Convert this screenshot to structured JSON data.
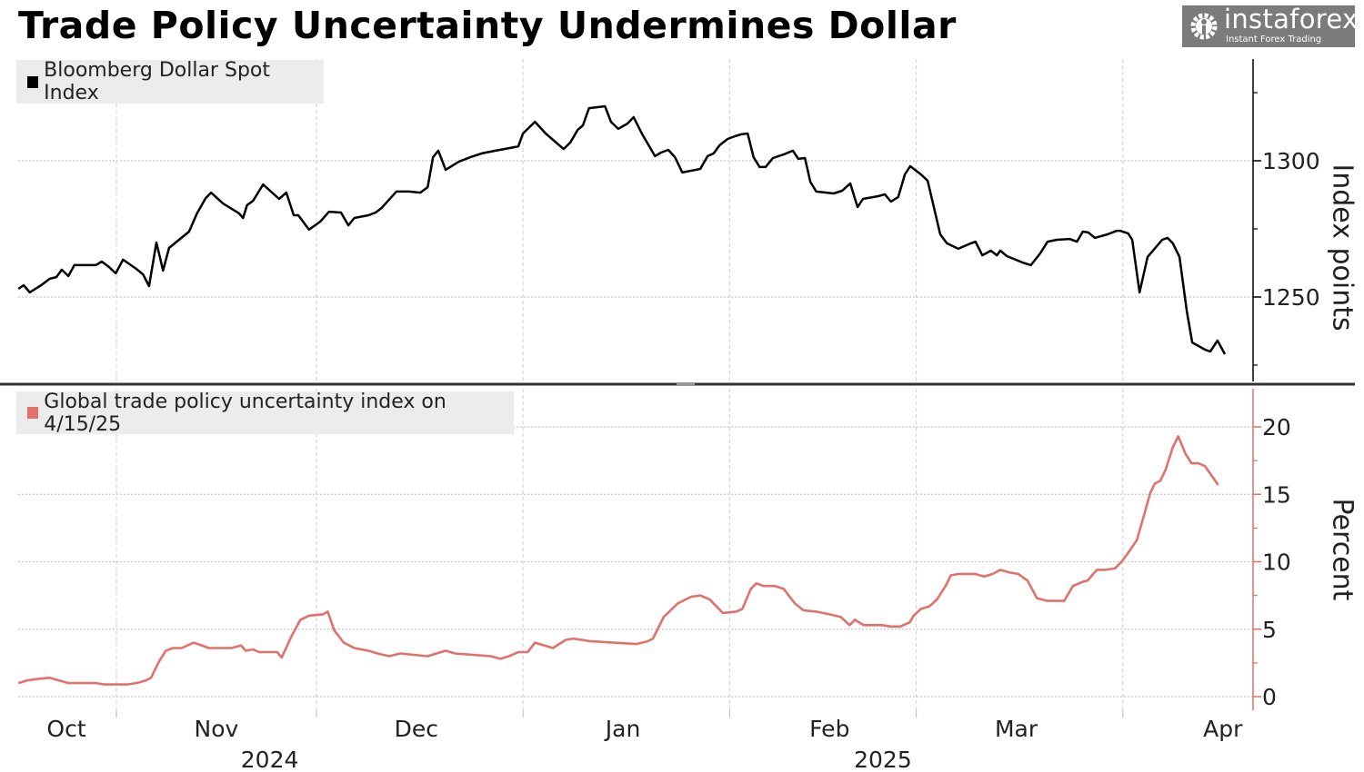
{
  "title": "Trade Policy Uncertainty Undermines Dollar",
  "watermark": {
    "brand": "instaforex",
    "tagline": "Instant Forex Trading"
  },
  "chart_data": [
    {
      "type": "line",
      "panel": "top",
      "legend": "Bloomberg Dollar Spot Index",
      "legend_placement": "top-left",
      "color": "#000000",
      "ylabel": "Index points",
      "yticks": [
        1250,
        1300
      ],
      "ylim": [
        1219,
        1337
      ],
      "grid": true,
      "x_unit": "days since 2024-11-01",
      "x": [
        -14.7,
        -13.9,
        -13.0,
        -11.3,
        -10.0,
        -9.0,
        -8.2,
        -7.2,
        -6.3,
        -3.1,
        -2.2,
        -1.1,
        -0.1,
        1.0,
        3.0,
        4.0,
        4.9,
        6.0,
        7.0,
        7.9,
        9.4,
        10.9,
        12.1,
        13.4,
        14.2,
        16.0,
        18.4,
        19.0,
        19.6,
        20.5,
        22.0,
        24.4,
        25.5,
        26.6,
        27.3,
        28.9,
        30.6,
        31.9,
        33.7,
        34.8,
        35.7,
        37.8,
        38.9,
        39.8,
        40.9,
        42.0,
        43.9,
        45.6,
        46.7,
        47.5,
        48.3,
        49.4,
        51.4,
        53.1,
        54.8,
        56.9,
        59.1,
        60.3,
        61.0,
        62.8,
        64.4,
        67.1,
        68.1,
        69.2,
        70.0,
        70.9,
        73.3,
        74.2,
        75.3,
        76.7,
        77.6,
        78.9,
        80.8,
        81.7,
        82.8,
        83.8,
        84.9,
        87.6,
        88.7,
        89.6,
        90.5,
        91.7,
        92.8,
        93.7,
        94.7,
        95.6,
        96.5,
        97.4,
        98.5,
        100.1,
        101.5,
        102.3,
        103.3,
        104.1,
        105.0,
        107.6,
        108.9,
        110.1,
        111.2,
        112.0,
        114.3,
        115.3,
        116.2,
        117.3,
        118.3,
        119.1,
        120.7,
        121.7,
        123.6,
        124.6,
        126.3,
        128.2,
        128.9,
        129.9,
        131.2,
        132.1,
        132.6,
        133.6,
        135.9,
        137.2,
        138.6,
        139.7,
        141.1,
        143.0,
        144.1,
        145.0,
        145.8,
        146.8,
        148.7,
        150.1,
        150.6,
        151.8,
        152.4,
        153.5,
        154.7,
        156.9,
        157.7,
        158.5,
        159.5,
        160.6,
        161.4,
        163.3,
        164.1,
        165.2,
        166.3
      ],
      "values": [
        1253.0,
        1254.3,
        1251.7,
        1254.3,
        1256.7,
        1257.3,
        1260.0,
        1257.7,
        1261.7,
        1261.7,
        1263.0,
        1261.0,
        1258.7,
        1263.7,
        1260.3,
        1258.3,
        1254.0,
        1270.0,
        1259.7,
        1268.0,
        1271.0,
        1274.0,
        1280.7,
        1286.3,
        1288.3,
        1284.3,
        1280.7,
        1279.0,
        1283.7,
        1285.3,
        1291.3,
        1286.0,
        1288.3,
        1280.0,
        1280.0,
        1274.7,
        1277.7,
        1281.3,
        1281.0,
        1276.3,
        1279.0,
        1280.0,
        1281.0,
        1282.7,
        1285.7,
        1288.7,
        1288.7,
        1288.3,
        1290.3,
        1301.3,
        1303.7,
        1296.7,
        1299.7,
        1301.3,
        1302.7,
        1303.7,
        1304.7,
        1305.3,
        1310.0,
        1314.3,
        1310.0,
        1304.3,
        1306.7,
        1311.3,
        1313.0,
        1319.3,
        1320.0,
        1314.3,
        1311.7,
        1313.7,
        1316.0,
        1309.7,
        1301.7,
        1303.0,
        1304.0,
        1301.3,
        1295.7,
        1297.0,
        1301.7,
        1302.7,
        1305.7,
        1308.0,
        1309.0,
        1309.7,
        1310.0,
        1301.3,
        1297.7,
        1297.7,
        1301.0,
        1302.3,
        1303.7,
        1300.7,
        1301.0,
        1292.3,
        1288.7,
        1288.0,
        1289.0,
        1291.7,
        1283.0,
        1286.0,
        1287.0,
        1287.7,
        1285.0,
        1286.7,
        1295.0,
        1298.0,
        1295.0,
        1292.7,
        1273.0,
        1269.7,
        1267.7,
        1269.7,
        1270.3,
        1265.3,
        1267.0,
        1265.3,
        1267.0,
        1265.0,
        1262.7,
        1261.7,
        1266.0,
        1270.3,
        1271.0,
        1271.3,
        1270.3,
        1274.0,
        1273.7,
        1271.7,
        1273.0,
        1274.3,
        1274.3,
        1273.3,
        1271.0,
        1251.7,
        1264.7,
        1271.0,
        1271.7,
        1269.7,
        1264.7,
        1244.7,
        1233.3,
        1230.7,
        1230.0,
        1234.0,
        1229.0
      ]
    },
    {
      "type": "line",
      "panel": "bottom",
      "legend": "Global trade policy uncertainty index on 4/15/25",
      "legend_placement": "top-left",
      "color": "#e0716b",
      "ylabel": "Percent",
      "yticks": [
        0,
        5,
        10,
        15,
        20
      ],
      "ylim": [
        -1,
        22.8
      ],
      "grid": true,
      "x_unit": "days since 2024-11-01",
      "x": [
        -14.7,
        -13.4,
        -12.0,
        -10.0,
        -8.6,
        -7.2,
        -3.1,
        -1.8,
        1.6,
        3.0,
        4.4,
        5.2,
        6.4,
        7.4,
        8.5,
        9.8,
        11.6,
        12.8,
        13.9,
        17.3,
        18.7,
        19.4,
        20.5,
        21.4,
        24.1,
        24.8,
        26.2,
        27.6,
        28.9,
        31.0,
        31.7,
        32.7,
        34.1,
        35.7,
        37.8,
        39.2,
        40.9,
        42.6,
        46.7,
        48.0,
        49.4,
        50.8,
        56.2,
        57.6,
        58.9,
        60.3,
        61.7,
        62.8,
        65.5,
        67.4,
        68.5,
        71.2,
        78.0,
        79.7,
        80.5,
        82.1,
        84.2,
        86.2,
        87.6,
        89.0,
        91.0,
        93.0,
        93.9,
        95.2,
        96.0,
        97.1,
        98.8,
        100.1,
        101.8,
        103.1,
        105.0,
        107.0,
        108.7,
        110.0,
        110.8,
        112.1,
        114.9,
        116.2,
        117.6,
        119.0,
        119.6,
        120.7,
        122.0,
        123.1,
        124.4,
        125.2,
        126.5,
        128.8,
        130.2,
        131.5,
        132.6,
        134.0,
        135.3,
        136.7,
        138.1,
        139.7,
        140.8,
        142.2,
        143.5,
        144.9,
        145.7,
        147.1,
        148.4,
        149.8,
        150.8,
        151.7,
        153.1,
        154.2,
        155.1,
        155.8,
        156.6,
        157.4,
        158.5,
        159.3,
        160.4,
        161.3,
        162.3,
        163.3,
        165.3
      ],
      "values": [
        1.0,
        1.2,
        1.3,
        1.4,
        1.2,
        1.0,
        1.0,
        0.9,
        0.9,
        1.0,
        1.2,
        1.4,
        2.6,
        3.4,
        3.6,
        3.6,
        4.0,
        3.8,
        3.6,
        3.6,
        3.8,
        3.4,
        3.5,
        3.3,
        3.3,
        2.9,
        4.4,
        5.7,
        6.0,
        6.1,
        6.3,
        4.9,
        4.0,
        3.6,
        3.4,
        3.2,
        3.0,
        3.2,
        3.0,
        3.2,
        3.4,
        3.2,
        3.0,
        2.8,
        3.0,
        3.3,
        3.3,
        4.0,
        3.6,
        4.2,
        4.3,
        4.1,
        3.9,
        4.1,
        4.3,
        5.9,
        6.9,
        7.4,
        7.5,
        7.2,
        6.2,
        6.3,
        6.5,
        8.0,
        8.4,
        8.2,
        8.2,
        8.0,
        6.9,
        6.4,
        6.3,
        6.1,
        5.9,
        5.3,
        5.7,
        5.3,
        5.3,
        5.2,
        5.2,
        5.5,
        6.0,
        6.5,
        6.7,
        7.2,
        8.2,
        9.0,
        9.1,
        9.1,
        8.9,
        9.1,
        9.4,
        9.2,
        9.1,
        8.6,
        7.3,
        7.1,
        7.1,
        7.1,
        8.2,
        8.5,
        8.6,
        9.4,
        9.4,
        9.5,
        10.0,
        10.6,
        11.6,
        13.5,
        15.1,
        15.8,
        16.0,
        16.8,
        18.5,
        19.3,
        18.0,
        17.3,
        17.3,
        17.1,
        15.7
      ]
    }
  ],
  "x_axis": {
    "months": [
      {
        "label": "Oct",
        "start_day": -31
      },
      {
        "label": "Nov",
        "start_day": 0
      },
      {
        "label": "Dec",
        "start_day": 30
      },
      {
        "label": "Jan",
        "start_day": 61
      },
      {
        "label": "Feb",
        "start_day": 92
      },
      {
        "label": "Mar",
        "start_day": 120
      },
      {
        "label": "Apr",
        "start_day": 151
      }
    ],
    "years": [
      {
        "label": "2024",
        "day": 23
      },
      {
        "label": "2025",
        "day": 115
      }
    ]
  }
}
